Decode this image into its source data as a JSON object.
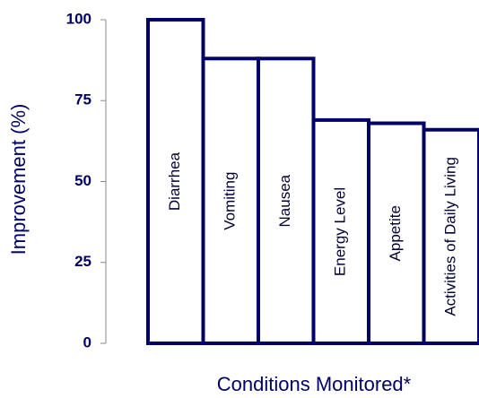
{
  "chart_data": {
    "type": "bar",
    "categories": [
      "Diarrhea",
      "Vomiting",
      "Nausea",
      "Energy Level",
      "Appetite",
      "Activities of Daily Living"
    ],
    "values": [
      100,
      88,
      88,
      69,
      68,
      66
    ],
    "color": "#000066",
    "ylim": [
      0,
      100
    ],
    "yticks": [
      0,
      25,
      50,
      75,
      100
    ],
    "ylabel": "Improvement (%)",
    "xlabel": "Conditions Monitored*"
  }
}
